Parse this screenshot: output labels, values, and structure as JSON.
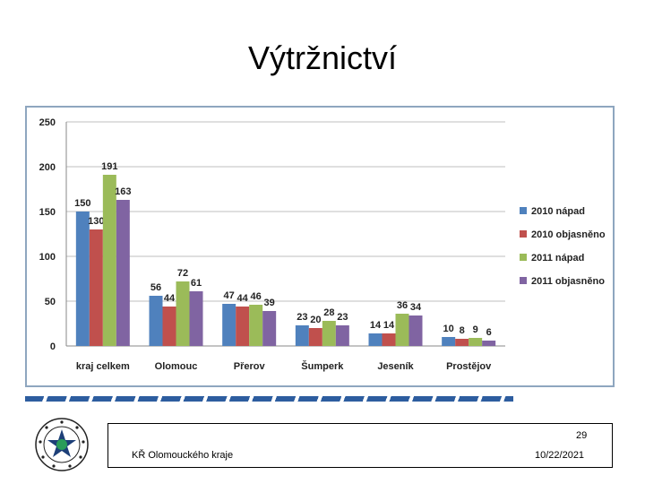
{
  "slide": {
    "title": "Výtržnictví",
    "page_number": "29",
    "organization": "KŘ Olomouckého kraje",
    "date": "10/22/2021"
  },
  "chart_data": {
    "type": "bar",
    "categories": [
      "kraj celkem",
      "Olomouc",
      "Přerov",
      "Šumperk",
      "Jeseník",
      "Prostějov"
    ],
    "series": [
      {
        "name": "2010 nápad",
        "color": "#4f81bd",
        "values": [
          150,
          56,
          47,
          23,
          14,
          10
        ]
      },
      {
        "name": "2010 objasněno",
        "color": "#c0504d",
        "values": [
          130,
          44,
          44,
          20,
          14,
          8
        ]
      },
      {
        "name": "2011 nápad",
        "color": "#9bbb59",
        "values": [
          191,
          72,
          46,
          28,
          36,
          9
        ]
      },
      {
        "name": "2011 objasněno",
        "color": "#8064a2",
        "values": [
          163,
          61,
          39,
          23,
          34,
          6
        ]
      }
    ],
    "ylim": [
      0,
      250
    ],
    "yticks": [
      0,
      50,
      100,
      150,
      200,
      250
    ],
    "grid": true,
    "legend": "right",
    "data_labels": true
  }
}
